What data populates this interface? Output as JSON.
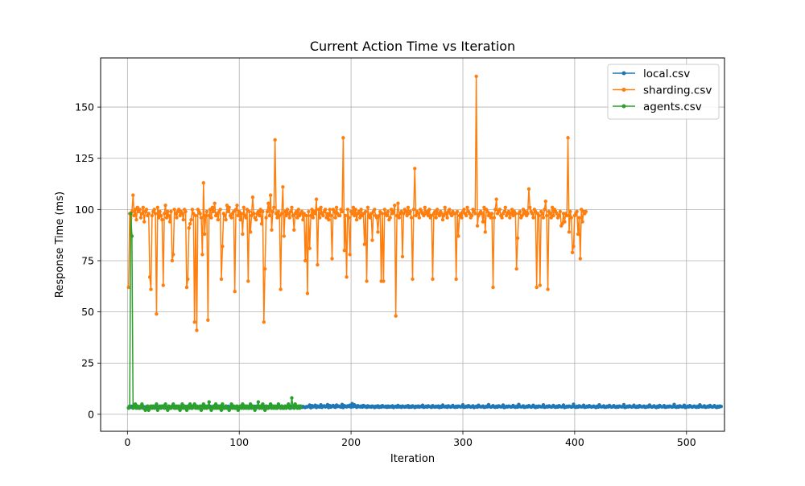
{
  "chart_data": {
    "type": "line",
    "title": "Current Action Time vs Iteration",
    "xlabel": "Iteration",
    "ylabel": "Response Time (ms)",
    "xlim": [
      -24,
      534
    ],
    "ylim": [
      -8.3,
      174
    ],
    "xticks": [
      0,
      100,
      200,
      300,
      400,
      500
    ],
    "yticks": [
      0,
      25,
      50,
      75,
      100,
      125,
      150
    ],
    "grid": true,
    "legend_position": "top-right",
    "series": [
      {
        "name": "local.csv",
        "color": "#1f77b4",
        "x_start": 1,
        "values": [
          3.2,
          3.6,
          3.4,
          3.9,
          3.5,
          3.8,
          3.3,
          4.1,
          3.7,
          3.4,
          3.6,
          3.9,
          3.2,
          3.8,
          3.5,
          3.4,
          3.7,
          3.9,
          3.3,
          3.6,
          3.8,
          3.4,
          3.5,
          3.7,
          3.2,
          3.9,
          3.6,
          3.4,
          3.8,
          3.5,
          3.3,
          3.7,
          3.6,
          3.9,
          3.4,
          3.5,
          3.8,
          3.2,
          3.6,
          3.7,
          3.4,
          3.9,
          3.5,
          3.3,
          3.8,
          3.6,
          3.4,
          3.7,
          3.5,
          3.9,
          3.3,
          3.6,
          3.8,
          3.4,
          3.5,
          3.7,
          3.2,
          3.9,
          3.6,
          3.4,
          3.8,
          3.5,
          3.3,
          3.7,
          3.6,
          3.9,
          3.4,
          3.5,
          3.8,
          3.2,
          3.6,
          3.7,
          3.4,
          3.9,
          3.5,
          3.3,
          3.8,
          3.6,
          3.4,
          3.7,
          3.5,
          3.9,
          3.3,
          3.6,
          3.8,
          3.4,
          3.5,
          3.7,
          3.2,
          3.9,
          3.6,
          3.4,
          3.8,
          3.5,
          3.3,
          3.7,
          3.6,
          3.9,
          3.4,
          3.5,
          3.8,
          3.2,
          3.6,
          3.7,
          3.4,
          3.9,
          3.5,
          3.3,
          3.8,
          3.6,
          3.4,
          3.7,
          3.5,
          3.9,
          3.3,
          3.6,
          3.8,
          3.4,
          3.5,
          3.7,
          3.2,
          3.9,
          3.6,
          3.4,
          3.8,
          3.5,
          3.3,
          3.7,
          3.6,
          3.9,
          3.4,
          3.5,
          3.8,
          3.2,
          3.6,
          3.7,
          3.4,
          3.9,
          3.5,
          3.3,
          3.8,
          3.6,
          3.4,
          3.7,
          3.5,
          3.9,
          3.3,
          3.6,
          3.8,
          3.4,
          3.5,
          3.7,
          3.2,
          3.9,
          3.6,
          3.4,
          3.8,
          3.5,
          3.3,
          3.7,
          3.6,
          3.9,
          4.5,
          3.2,
          4.2,
          3.6,
          3.8,
          4.4,
          3.3,
          4.0,
          3.7,
          3.5,
          4.6,
          3.4,
          3.9,
          4.1,
          3.6,
          3.8,
          4.7,
          3.3,
          4.2,
          3.5,
          3.9,
          4.3,
          3.6,
          3.4,
          4.5,
          3.8,
          4.0,
          3.7,
          3.5,
          4.8,
          3.3,
          4.2,
          3.9,
          3.6,
          4.1,
          3.8,
          4.4,
          3.5,
          5.2,
          3.7,
          4.6,
          3.9,
          3.4,
          4.2,
          3.8,
          3.6,
          4.0,
          3.5,
          4.3,
          3.7,
          3.9,
          3.4,
          4.1,
          3.6,
          3.8,
          3.5,
          4.0,
          3.7,
          3.3,
          3.9,
          3.6,
          4.1,
          3.4,
          3.8,
          3.5,
          4.2,
          3.7,
          3.6,
          3.9,
          3.4,
          4.0,
          3.5,
          3.8,
          3.6,
          4.1,
          3.3,
          3.7,
          3.9,
          3.5,
          4.3,
          3.6,
          3.8,
          3.4,
          4.0,
          3.7,
          3.5,
          3.9,
          3.6,
          4.2,
          3.4,
          3.8,
          3.5,
          4.1,
          3.7,
          3.3,
          3.9,
          3.6,
          4.0,
          3.5,
          3.8,
          3.7,
          4.4,
          3.4,
          3.6,
          3.9,
          3.5,
          4.1,
          3.8,
          3.6,
          3.4,
          4.2,
          3.7,
          3.5,
          3.9,
          3.6,
          4.0,
          3.3,
          3.8,
          3.5,
          4.5,
          3.7,
          3.6,
          3.9,
          3.4,
          4.1,
          3.8,
          3.5,
          3.7,
          4.3,
          3.6,
          3.4,
          3.9,
          3.5,
          4.0,
          3.8,
          3.6,
          3.7,
          4.6,
          3.4,
          3.5,
          3.9,
          3.6,
          4.2,
          3.8,
          3.5,
          3.7,
          4.1,
          3.3,
          3.6,
          3.9,
          3.5,
          4.4,
          3.8,
          3.6,
          3.7,
          4.0,
          3.4,
          3.5,
          3.9,
          3.6,
          4.7,
          3.8,
          3.5,
          3.7,
          4.2,
          3.6,
          3.4,
          3.9,
          3.5,
          4.1,
          3.8,
          3.6,
          3.7,
          4.5,
          3.3,
          3.5,
          3.9,
          3.6,
          4.0,
          3.8,
          3.5,
          3.7,
          4.3,
          3.6,
          3.4,
          3.9,
          3.5,
          4.8,
          3.8,
          3.6,
          3.7,
          4.1,
          3.4,
          3.5,
          3.9,
          3.6,
          4.2,
          3.8,
          3.5,
          3.7,
          4.4,
          3.6,
          3.3,
          3.9,
          3.5,
          4.0,
          3.8,
          3.6,
          3.7,
          4.6,
          3.4,
          3.5,
          3.9,
          3.6,
          4.1,
          3.8,
          3.5,
          3.7,
          4.3,
          3.6,
          3.4,
          3.9,
          3.5,
          4.2,
          3.8,
          3.6,
          3.7,
          4.5,
          3.3,
          3.5,
          3.9,
          3.6,
          4.0,
          3.8,
          3.5,
          3.7,
          4.9,
          3.6,
          3.4,
          3.9,
          3.5,
          4.1,
          3.8,
          3.6,
          3.7,
          4.4,
          3.4,
          3.5,
          3.9,
          3.6,
          4.2,
          3.8,
          3.5,
          3.7,
          4.0,
          3.6,
          3.3,
          3.9,
          3.5,
          4.6,
          3.8,
          3.6,
          3.7,
          4.1,
          3.4,
          3.5,
          3.9,
          3.6,
          4.3,
          3.8,
          3.5,
          3.7,
          4.2,
          3.6,
          3.4,
          3.9,
          3.5,
          4.0,
          3.8,
          3.6,
          3.7,
          4.7,
          3.3,
          3.5,
          3.9,
          3.6,
          4.1,
          3.8,
          3.5,
          3.7,
          4.4,
          3.6,
          3.4,
          3.9,
          3.5,
          4.2,
          3.8,
          3.6,
          3.7,
          4.0,
          3.4,
          3.5,
          3.9,
          3.6,
          4.5,
          3.8,
          3.5,
          3.7,
          4.1,
          3.6,
          3.3,
          3.9,
          3.5,
          4.3,
          3.8,
          3.6,
          3.7,
          4.2,
          3.4,
          3.5,
          3.9,
          3.6,
          4.0,
          3.8,
          3.5,
          3.7,
          4.8,
          3.6,
          3.4,
          3.9,
          3.5,
          4.1,
          3.8,
          3.6,
          3.7,
          4.4,
          3.3,
          3.5,
          3.9,
          3.6,
          4.2,
          3.8,
          3.5,
          3.7,
          4.0,
          3.6,
          3.4,
          3.9,
          3.5,
          4.6,
          3.8,
          3.6,
          3.7,
          4.1,
          3.4,
          3.5,
          3.9,
          3.6,
          4.3,
          3.8,
          3.5,
          3.7,
          4.2,
          3.6,
          3.3,
          3.9,
          3.5,
          4.0,
          3.8
        ]
      },
      {
        "name": "sharding.csv",
        "color": "#ff7f0e",
        "x_start": 1,
        "values": [
          62,
          98,
          88,
          99,
          107,
          97,
          100,
          95,
          101,
          99,
          100,
          96,
          98,
          101,
          94,
          99,
          100,
          97,
          98,
          67,
          61,
          97,
          99,
          100,
          98,
          49,
          101,
          96,
          99,
          97,
          95,
          63,
          98,
          102,
          96,
          99,
          97,
          94,
          99,
          75,
          78,
          100,
          98,
          96,
          99,
          100,
          97,
          99,
          98,
          95,
          100,
          99,
          62,
          66,
          91,
          93,
          95,
          100,
          98,
          45,
          97,
          41,
          100,
          99,
          98,
          96,
          78,
          113,
          88,
          97,
          99,
          46,
          97,
          100,
          96,
          101,
          99,
          103,
          97,
          98,
          95,
          99,
          100,
          66,
          82,
          98,
          97,
          95,
          102,
          99,
          101,
          97,
          96,
          98,
          99,
          60,
          100,
          102,
          97,
          99,
          95,
          98,
          88,
          101,
          97,
          96,
          100,
          65,
          99,
          89,
          97,
          106,
          98,
          96,
          95,
          98,
          99,
          97,
          100,
          93,
          99,
          45,
          71,
          96,
          99,
          103,
          97,
          107,
          90,
          99,
          101,
          134,
          98,
          96,
          99,
          97,
          61,
          98,
          111,
          87,
          99,
          97,
          100,
          98,
          96,
          99,
          101,
          97,
          90,
          98,
          99,
          96,
          100,
          97,
          98,
          99,
          95,
          98,
          75,
          97,
          59,
          99,
          81,
          97,
          100,
          96,
          99,
          98,
          105,
          73,
          100,
          96,
          101,
          98,
          97,
          99,
          100,
          96,
          98,
          95,
          100,
          97,
          76,
          100,
          99,
          96,
          101,
          98,
          97,
          97,
          100,
          99,
          135,
          80,
          97,
          67,
          100,
          96,
          78,
          99,
          98,
          101,
          97,
          100,
          95,
          98,
          99,
          96,
          100,
          97,
          98,
          83,
          99,
          65,
          101,
          97,
          96,
          98,
          85,
          99,
          100,
          97,
          96,
          89,
          97,
          99,
          65,
          98,
          65,
          100,
          98,
          97,
          99,
          95,
          96,
          100,
          98,
          99,
          102,
          48,
          97,
          103,
          96,
          98,
          99,
          77,
          98,
          100,
          99,
          97,
          101,
          98,
          99,
          96,
          66,
          100,
          120,
          97,
          99,
          98,
          96,
          100,
          99,
          98,
          97,
          101,
          98,
          99,
          97,
          100,
          96,
          97,
          66,
          98,
          99,
          96,
          100,
          98,
          97,
          99,
          98,
          95,
          97,
          101,
          98,
          96,
          99,
          100,
          98,
          97,
          99,
          98,
          98,
          66,
          99,
          87,
          97,
          98,
          96,
          99,
          100,
          98,
          97,
          101,
          99,
          98,
          96,
          97,
          100,
          99,
          98,
          165,
          92,
          97,
          98,
          99,
          98,
          94,
          101,
          89,
          100,
          99,
          97,
          98,
          96,
          98,
          62,
          96,
          100,
          105,
          98,
          99,
          100,
          97,
          96,
          98,
          99,
          101,
          97,
          98,
          99,
          96,
          98,
          100,
          97,
          99,
          98,
          71,
          86,
          98,
          99,
          96,
          97,
          100,
          98,
          99,
          97,
          98,
          110,
          101,
          99,
          98,
          96,
          100,
          99,
          62,
          98,
          97,
          63,
          99,
          98,
          96,
          100,
          104,
          97,
          61,
          99,
          98,
          96,
          101,
          97,
          100,
          99,
          98,
          96,
          97,
          99,
          92,
          93,
          98,
          94,
          98,
          97,
          135,
          89,
          99,
          96,
          79,
          82,
          97,
          98,
          99,
          88,
          96,
          76,
          100,
          94,
          99,
          98,
          99
        ]
      },
      {
        "name": "agents.csv",
        "color": "#2ca02c",
        "x_start": 1,
        "values": [
          3,
          4,
          98,
          87,
          3,
          4,
          5,
          3,
          4,
          3,
          3,
          4,
          5,
          3,
          3,
          2,
          3,
          4,
          2,
          3,
          4,
          3,
          4,
          3,
          4,
          5,
          2,
          3,
          4,
          3,
          4,
          4,
          3,
          5,
          3,
          2,
          4,
          3,
          3,
          4,
          5,
          3,
          3,
          4,
          3,
          4,
          2,
          3,
          5,
          3,
          4,
          3,
          2,
          4,
          3,
          5,
          3,
          3,
          4,
          5,
          3,
          4,
          3,
          3,
          4,
          2,
          3,
          5,
          3,
          4,
          3,
          4,
          6,
          3,
          2,
          3,
          4,
          3,
          5,
          3,
          4,
          3,
          4,
          2,
          5,
          3,
          3,
          4,
          3,
          3,
          2,
          3,
          5,
          3,
          4,
          3,
          3,
          4,
          2,
          3,
          4,
          3,
          5,
          3,
          4,
          3,
          4,
          3,
          3,
          5,
          3,
          4,
          3,
          2,
          3,
          4,
          6,
          3,
          4,
          3,
          5,
          3,
          2,
          4,
          3,
          3,
          4,
          5,
          3,
          4,
          3,
          4,
          3,
          3,
          5,
          4,
          3,
          4,
          3,
          3,
          4,
          3,
          4,
          5,
          3,
          3,
          8,
          4,
          3,
          5,
          4,
          3,
          4,
          3,
          4
        ]
      }
    ]
  }
}
